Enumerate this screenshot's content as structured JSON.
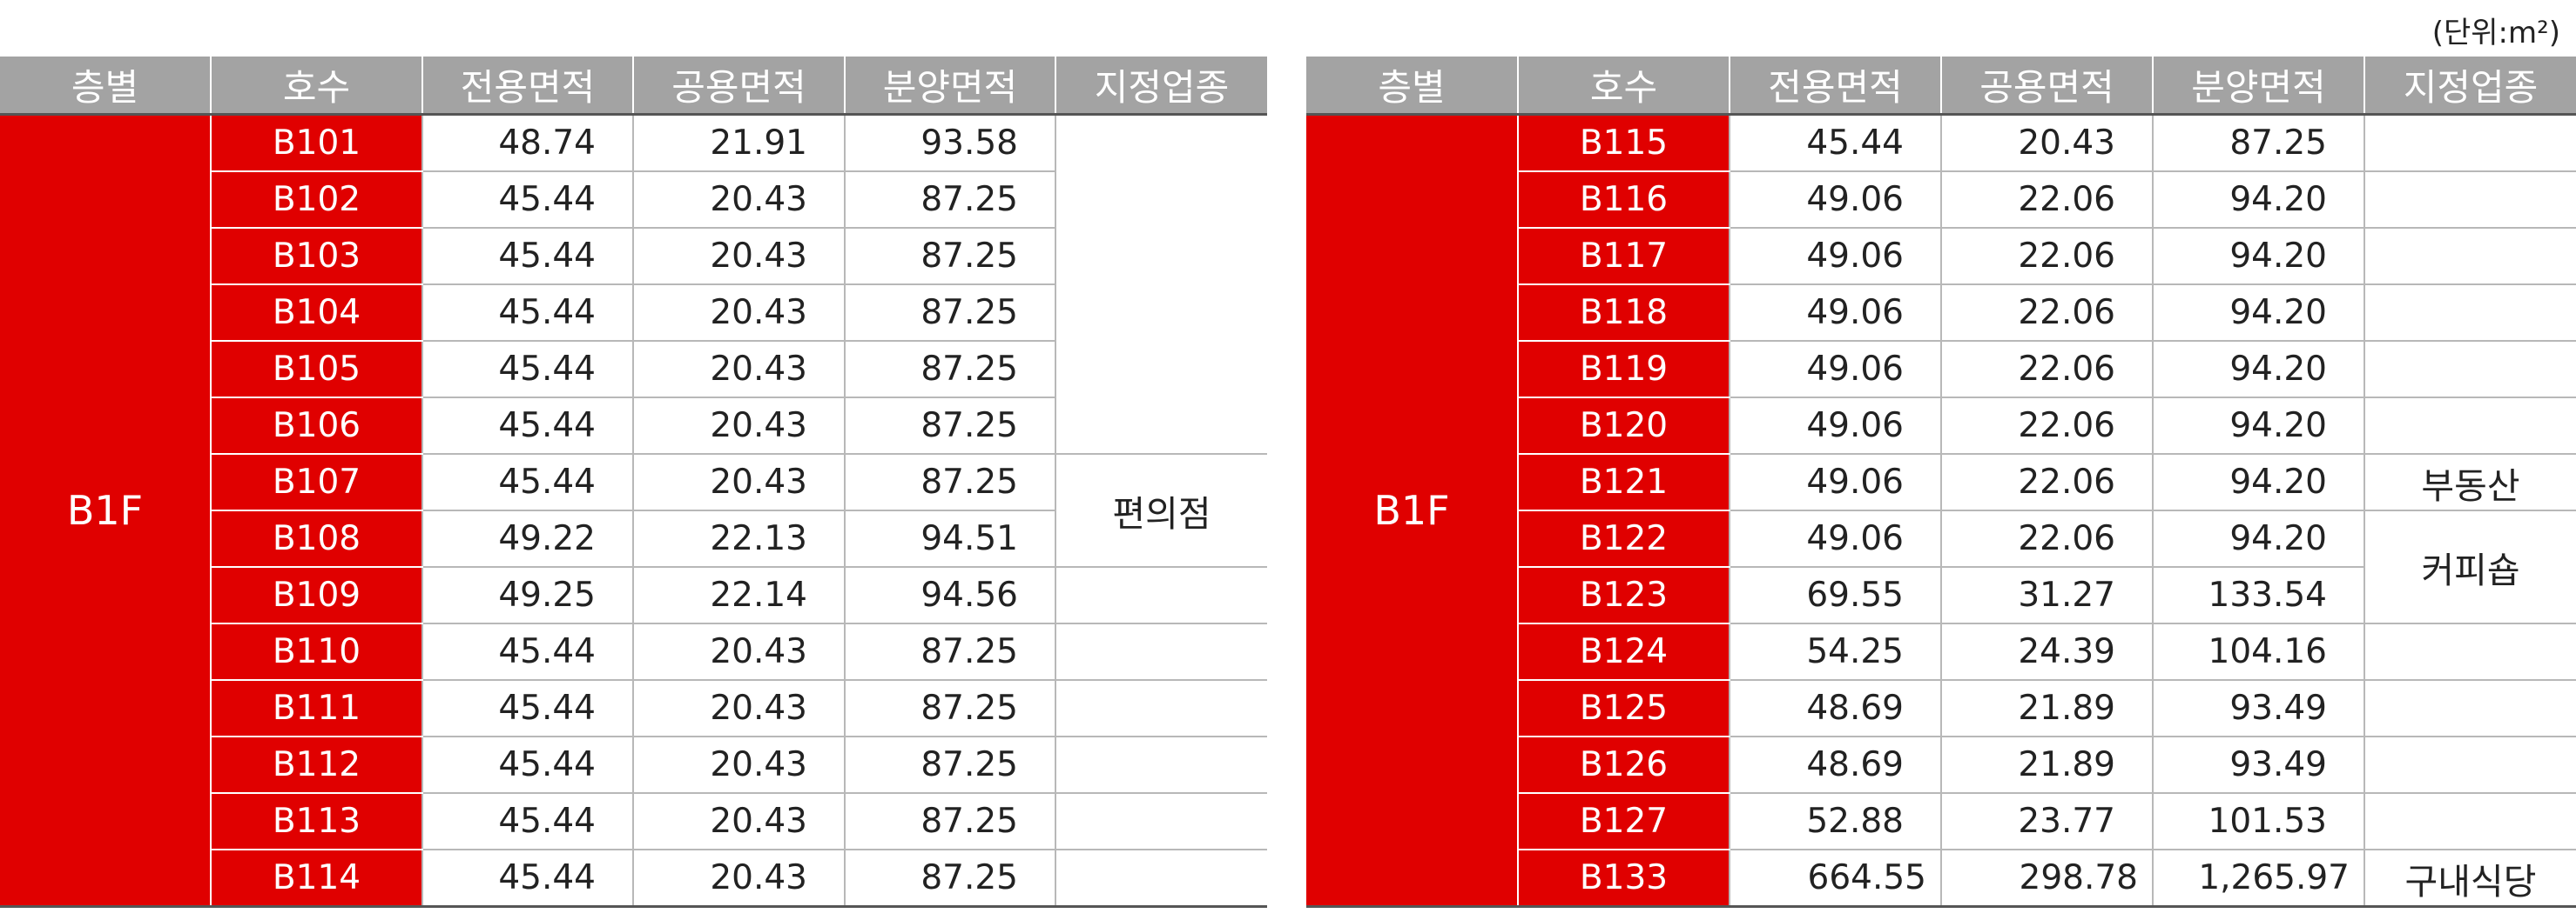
{
  "unit_note": "(단위:m²)",
  "headers": [
    "층별",
    "호수",
    "전용면적",
    "공용면적",
    "분양면적",
    "지정업종"
  ],
  "left": {
    "floor": "B1F",
    "rows": [
      {
        "unit": "B101",
        "exclusive": "48.74",
        "common": "21.91",
        "sale": "93.58"
      },
      {
        "unit": "B102",
        "exclusive": "45.44",
        "common": "20.43",
        "sale": "87.25"
      },
      {
        "unit": "B103",
        "exclusive": "45.44",
        "common": "20.43",
        "sale": "87.25"
      },
      {
        "unit": "B104",
        "exclusive": "45.44",
        "common": "20.43",
        "sale": "87.25"
      },
      {
        "unit": "B105",
        "exclusive": "45.44",
        "common": "20.43",
        "sale": "87.25"
      },
      {
        "unit": "B106",
        "exclusive": "45.44",
        "common": "20.43",
        "sale": "87.25"
      },
      {
        "unit": "B107",
        "exclusive": "45.44",
        "common": "20.43",
        "sale": "87.25"
      },
      {
        "unit": "B108",
        "exclusive": "49.22",
        "common": "22.13",
        "sale": "94.51"
      },
      {
        "unit": "B109",
        "exclusive": "49.25",
        "common": "22.14",
        "sale": "94.56"
      },
      {
        "unit": "B110",
        "exclusive": "45.44",
        "common": "20.43",
        "sale": "87.25"
      },
      {
        "unit": "B111",
        "exclusive": "45.44",
        "common": "20.43",
        "sale": "87.25"
      },
      {
        "unit": "B112",
        "exclusive": "45.44",
        "common": "20.43",
        "sale": "87.25"
      },
      {
        "unit": "B113",
        "exclusive": "45.44",
        "common": "20.43",
        "sale": "87.25"
      },
      {
        "unit": "B114",
        "exclusive": "45.44",
        "common": "20.43",
        "sale": "87.25"
      }
    ],
    "business": [
      {
        "label": "",
        "rows": 6
      },
      {
        "label": "편의점",
        "rows": 2
      },
      {
        "label": "",
        "rows": 1
      },
      {
        "label": "",
        "rows": 1
      },
      {
        "label": "",
        "rows": 1
      },
      {
        "label": "",
        "rows": 1
      },
      {
        "label": "",
        "rows": 1
      },
      {
        "label": "",
        "rows": 1
      }
    ]
  },
  "right": {
    "floor": "B1F",
    "rows": [
      {
        "unit": "B115",
        "exclusive": "45.44",
        "common": "20.43",
        "sale": "87.25"
      },
      {
        "unit": "B116",
        "exclusive": "49.06",
        "common": "22.06",
        "sale": "94.20"
      },
      {
        "unit": "B117",
        "exclusive": "49.06",
        "common": "22.06",
        "sale": "94.20"
      },
      {
        "unit": "B118",
        "exclusive": "49.06",
        "common": "22.06",
        "sale": "94.20"
      },
      {
        "unit": "B119",
        "exclusive": "49.06",
        "common": "22.06",
        "sale": "94.20"
      },
      {
        "unit": "B120",
        "exclusive": "49.06",
        "common": "22.06",
        "sale": "94.20"
      },
      {
        "unit": "B121",
        "exclusive": "49.06",
        "common": "22.06",
        "sale": "94.20"
      },
      {
        "unit": "B122",
        "exclusive": "49.06",
        "common": "22.06",
        "sale": "94.20"
      },
      {
        "unit": "B123",
        "exclusive": "69.55",
        "common": "31.27",
        "sale": "133.54"
      },
      {
        "unit": "B124",
        "exclusive": "54.25",
        "common": "24.39",
        "sale": "104.16"
      },
      {
        "unit": "B125",
        "exclusive": "48.69",
        "common": "21.89",
        "sale": "93.49"
      },
      {
        "unit": "B126",
        "exclusive": "48.69",
        "common": "21.89",
        "sale": "93.49"
      },
      {
        "unit": "B127",
        "exclusive": "52.88",
        "common": "23.77",
        "sale": "101.53"
      },
      {
        "unit": "B133",
        "exclusive": "664.55",
        "common": "298.78",
        "sale": "1,265.97"
      }
    ],
    "business": [
      {
        "label": "",
        "rows": 1
      },
      {
        "label": "",
        "rows": 1
      },
      {
        "label": "",
        "rows": 1
      },
      {
        "label": "",
        "rows": 1
      },
      {
        "label": "",
        "rows": 1
      },
      {
        "label": "",
        "rows": 1
      },
      {
        "label": "부동산",
        "rows": 1
      },
      {
        "label": "커피숍",
        "rows": 2
      },
      {
        "label": "",
        "rows": 1
      },
      {
        "label": "",
        "rows": 1
      },
      {
        "label": "",
        "rows": 1
      },
      {
        "label": "",
        "rows": 1
      },
      {
        "label": "구내식당",
        "rows": 1
      }
    ]
  }
}
